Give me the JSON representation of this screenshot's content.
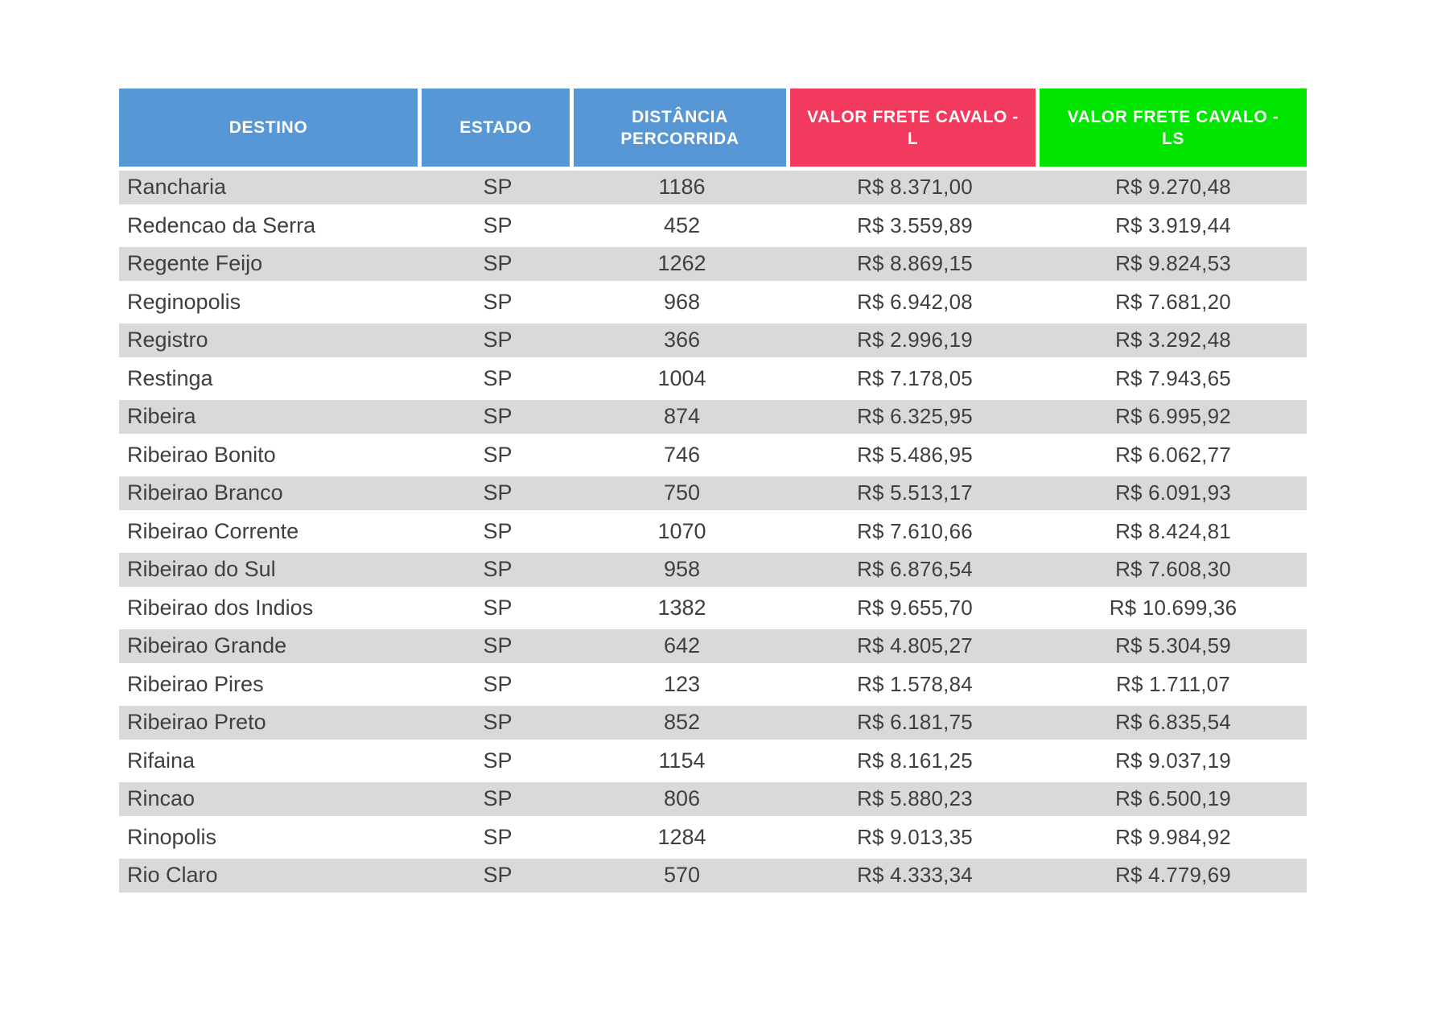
{
  "table": {
    "columns": [
      {
        "key": "destino",
        "label": "DESTINO",
        "bg": "#5797d6"
      },
      {
        "key": "estado",
        "label": "ESTADO",
        "bg": "#5797d6"
      },
      {
        "key": "distancia",
        "label": "DISTÂNCIA PERCORRIDA",
        "bg": "#5797d6"
      },
      {
        "key": "valor_l",
        "label": "VALOR FRETE CAVALO - L",
        "bg": "#f13a5e"
      },
      {
        "key": "valor_ls",
        "label": "VALOR FRETE CAVALO - LS",
        "bg": "#00e400"
      }
    ],
    "rows": [
      {
        "destino": "Rancharia",
        "estado": "SP",
        "distancia": "1186",
        "valor_l": "R$ 8.371,00",
        "valor_ls": "R$ 9.270,48"
      },
      {
        "destino": "Redencao da Serra",
        "estado": "SP",
        "distancia": "452",
        "valor_l": "R$ 3.559,89",
        "valor_ls": "R$ 3.919,44"
      },
      {
        "destino": "Regente Feijo",
        "estado": "SP",
        "distancia": "1262",
        "valor_l": "R$ 8.869,15",
        "valor_ls": "R$ 9.824,53"
      },
      {
        "destino": "Reginopolis",
        "estado": "SP",
        "distancia": "968",
        "valor_l": "R$ 6.942,08",
        "valor_ls": "R$ 7.681,20"
      },
      {
        "destino": "Registro",
        "estado": "SP",
        "distancia": "366",
        "valor_l": "R$ 2.996,19",
        "valor_ls": "R$ 3.292,48"
      },
      {
        "destino": "Restinga",
        "estado": "SP",
        "distancia": "1004",
        "valor_l": "R$ 7.178,05",
        "valor_ls": "R$ 7.943,65"
      },
      {
        "destino": "Ribeira",
        "estado": "SP",
        "distancia": "874",
        "valor_l": "R$ 6.325,95",
        "valor_ls": "R$ 6.995,92"
      },
      {
        "destino": "Ribeirao Bonito",
        "estado": "SP",
        "distancia": "746",
        "valor_l": "R$ 5.486,95",
        "valor_ls": "R$ 6.062,77"
      },
      {
        "destino": "Ribeirao Branco",
        "estado": "SP",
        "distancia": "750",
        "valor_l": "R$ 5.513,17",
        "valor_ls": "R$ 6.091,93"
      },
      {
        "destino": "Ribeirao Corrente",
        "estado": "SP",
        "distancia": "1070",
        "valor_l": "R$ 7.610,66",
        "valor_ls": "R$ 8.424,81"
      },
      {
        "destino": "Ribeirao do Sul",
        "estado": "SP",
        "distancia": "958",
        "valor_l": "R$ 6.876,54",
        "valor_ls": "R$ 7.608,30"
      },
      {
        "destino": "Ribeirao dos Indios",
        "estado": "SP",
        "distancia": "1382",
        "valor_l": "R$ 9.655,70",
        "valor_ls": "R$ 10.699,36"
      },
      {
        "destino": "Ribeirao Grande",
        "estado": "SP",
        "distancia": "642",
        "valor_l": "R$ 4.805,27",
        "valor_ls": "R$ 5.304,59"
      },
      {
        "destino": "Ribeirao Pires",
        "estado": "SP",
        "distancia": "123",
        "valor_l": "R$ 1.578,84",
        "valor_ls": "R$ 1.711,07"
      },
      {
        "destino": "Ribeirao Preto",
        "estado": "SP",
        "distancia": "852",
        "valor_l": "R$ 6.181,75",
        "valor_ls": "R$ 6.835,54"
      },
      {
        "destino": "Rifaina",
        "estado": "SP",
        "distancia": "1154",
        "valor_l": "R$ 8.161,25",
        "valor_ls": "R$ 9.037,19"
      },
      {
        "destino": "Rincao",
        "estado": "SP",
        "distancia": "806",
        "valor_l": "R$ 5.880,23",
        "valor_ls": "R$ 6.500,19"
      },
      {
        "destino": "Rinopolis",
        "estado": "SP",
        "distancia": "1284",
        "valor_l": "R$ 9.013,35",
        "valor_ls": "R$ 9.984,92"
      },
      {
        "destino": "Rio Claro",
        "estado": "SP",
        "distancia": "570",
        "valor_l": "R$ 4.333,34",
        "valor_ls": "R$ 4.779,69"
      }
    ],
    "colors": {
      "header_blue": "#5797d6",
      "header_red": "#f13a5e",
      "header_green": "#00e400",
      "stripe_gray": "#d9d9d9",
      "row_white": "#ffffff",
      "cell_text": "#3f3f3f",
      "header_text": "#ffffff"
    }
  }
}
